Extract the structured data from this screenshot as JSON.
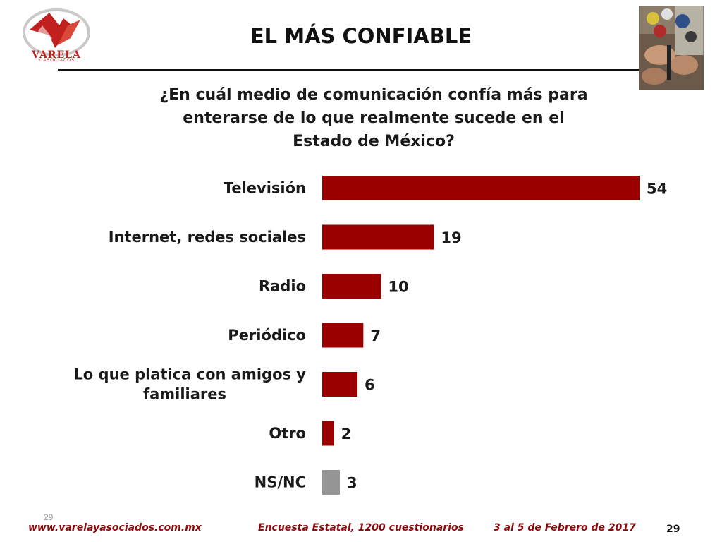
{
  "header": {
    "logo_text": "VARELA",
    "logo_subtext": "Y ASOCIADOS",
    "title": "EL MÁS CONFIABLE",
    "question_lines": [
      "¿En cuál medio de comunicación confía más para",
      "enterarse de lo que realmente sucede en el",
      "Estado de México?"
    ]
  },
  "chart_data": {
    "type": "bar",
    "orientation": "horizontal",
    "categories": [
      [
        "Televisión"
      ],
      [
        "Internet, redes sociales"
      ],
      [
        "Radio"
      ],
      [
        "Periódico"
      ],
      [
        "Lo que platica con amigos y",
        "familiares"
      ],
      [
        "Otro"
      ],
      [
        "NS/NC"
      ]
    ],
    "values": [
      54,
      19,
      10,
      7,
      6,
      2,
      3
    ],
    "value_labels": [
      "54",
      "19",
      "10",
      "7",
      "6",
      "2",
      "3"
    ],
    "colors": [
      "#9b0000",
      "#9b0000",
      "#9b0000",
      "#9b0000",
      "#9b0000",
      "#9b0000",
      "#959595"
    ],
    "xlim": [
      0,
      54
    ],
    "grid": false,
    "legend": "none"
  },
  "footer": {
    "slide_number_small": "29",
    "url": "www.varelayasociados.com.mx",
    "survey": "Encuesta Estatal, 1200 cuestionarios",
    "date": "3 al 5 de Febrero de 2017",
    "page": "29"
  },
  "colors": {
    "bar_primary": "#9b0000",
    "bar_secondary": "#959595",
    "footer_text": "#8b0a0e",
    "logo": "#c0201e"
  }
}
